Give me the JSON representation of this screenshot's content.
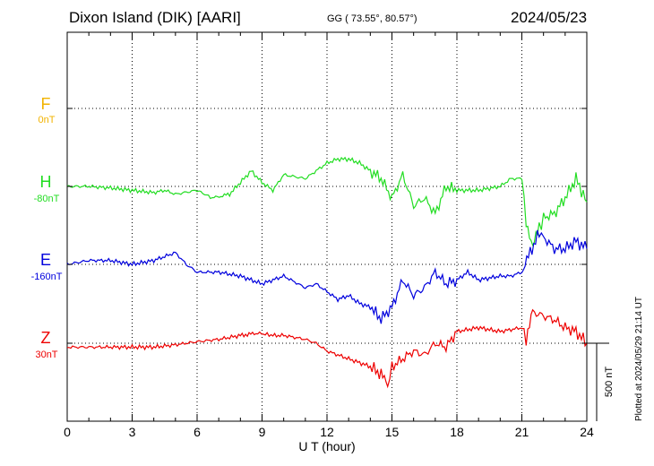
{
  "header": {
    "station": "Dixon Island (DIK)  [AARI]",
    "coords": "GG ( 73.55°,  80.57°)",
    "date": "2024/05/23"
  },
  "plot_stamp": "Plotted at 2024/05/29 21:14 UT",
  "scale_label": "500 nT",
  "chart_data": {
    "type": "line",
    "xlabel": "U T (hour)",
    "xlim": [
      0,
      24
    ],
    "xticks": [
      0,
      3,
      6,
      9,
      12,
      15,
      18,
      21,
      24
    ],
    "xtick_labels": [
      "0",
      "3",
      "6",
      "9",
      "12",
      "15",
      "18",
      "21",
      "24"
    ],
    "grid": true,
    "series": [
      {
        "name": "F",
        "offset_label": "0nT",
        "color": "#f2b300",
        "x": [],
        "y": []
      },
      {
        "name": "H",
        "offset_label": "-80nT",
        "color": "#22dd22",
        "x": [
          0,
          1,
          2,
          3,
          4,
          4.5,
          5,
          6,
          6.7,
          7.5,
          8,
          8.5,
          9,
          9.5,
          10,
          11,
          11.5,
          12,
          12.5,
          13,
          13.5,
          14,
          14.5,
          15,
          15.5,
          16,
          16.5,
          17,
          17.5,
          18,
          18.5,
          19,
          20,
          20.5,
          21,
          21.2,
          21.5,
          21.8,
          22,
          22.5,
          23,
          23.5,
          24
        ],
        "y": [
          0,
          0,
          -2,
          -5,
          -8,
          -5,
          -10,
          -5,
          -15,
          -10,
          5,
          20,
          5,
          -5,
          15,
          10,
          20,
          30,
          35,
          35,
          30,
          20,
          10,
          -15,
          15,
          -25,
          -15,
          -35,
          0,
          -5,
          -5,
          -5,
          0,
          10,
          10,
          -45,
          -75,
          -55,
          -40,
          -35,
          -15,
          10,
          -20
        ]
      },
      {
        "name": "E",
        "offset_label": "-160nT",
        "color": "#0000dd",
        "x": [
          0,
          1,
          2,
          3,
          4,
          4.5,
          5,
          5.5,
          6,
          7,
          8,
          9,
          10,
          11,
          11.5,
          12,
          12.5,
          13,
          13.5,
          14,
          14.5,
          15,
          15.5,
          16,
          16.5,
          17,
          17.5,
          18,
          18.5,
          19,
          20,
          20.5,
          21,
          21.3,
          21.8,
          22,
          22.5,
          23,
          23.5,
          24
        ],
        "y": [
          0,
          5,
          5,
          0,
          5,
          10,
          15,
          0,
          -10,
          -10,
          -15,
          -25,
          -15,
          -30,
          -25,
          -35,
          -45,
          -40,
          -50,
          -55,
          -70,
          -55,
          -20,
          -40,
          -30,
          -10,
          -25,
          -20,
          -10,
          -20,
          -15,
          -15,
          -10,
          10,
          40,
          35,
          20,
          20,
          30,
          20
        ]
      },
      {
        "name": "Z",
        "offset_label": "30nT",
        "color": "#ee0000",
        "x": [
          0,
          1,
          2,
          3,
          4,
          5,
          6,
          7,
          8,
          8.8,
          9.5,
          10,
          11,
          11.5,
          12,
          12.5,
          13,
          13.5,
          14,
          14.5,
          14.8,
          15,
          15.5,
          16,
          16.5,
          17,
          17.5,
          18,
          19,
          20,
          21,
          21.2,
          21.5,
          22,
          22.5,
          23,
          23.5,
          24
        ],
        "y": [
          -5,
          -5,
          -5,
          -5,
          -5,
          -2,
          2,
          5,
          10,
          13,
          10,
          10,
          5,
          0,
          -10,
          -15,
          -20,
          -25,
          -30,
          -40,
          -55,
          -30,
          -20,
          -10,
          -15,
          0,
          -5,
          15,
          20,
          15,
          20,
          5,
          40,
          35,
          30,
          20,
          15,
          0
        ]
      }
    ]
  }
}
